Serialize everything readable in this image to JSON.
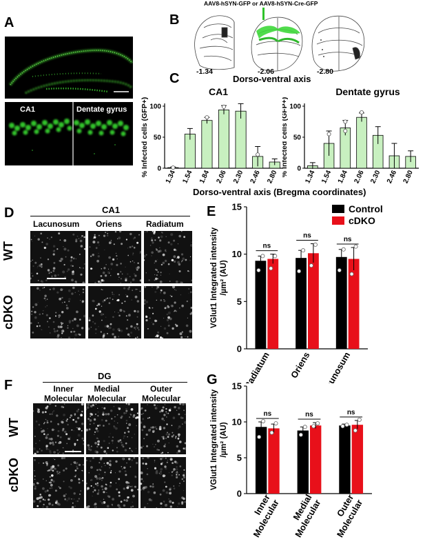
{
  "panels": {
    "a": {
      "label": "A",
      "sub_ca1": "CA1",
      "sub_dg": "Dentate gyrus"
    },
    "b": {
      "label": "B",
      "virus": "AAV8-hSYN-GFP or AAV8-hSYN-Cre-GFP",
      "coords": [
        "-1.34",
        "-2.06",
        "-2.80"
      ],
      "axis_title": "Dorso-ventral axis"
    },
    "c": {
      "label": "C",
      "shared_xlabel": "Dorso-ventral axis (Bregma coordinates)"
    },
    "d": {
      "label": "D",
      "region": "CA1",
      "columns": [
        "Lacunosum",
        "Oriens",
        "Radiatum"
      ],
      "rows": [
        "WT",
        "cDKO"
      ]
    },
    "e": {
      "label": "E"
    },
    "f": {
      "label": "F",
      "region": "DG",
      "columns": [
        "Inner\nMolecular",
        "Medial\nMolecular",
        "Outer\nMolecular"
      ],
      "rows": [
        "WT",
        "cDKO"
      ]
    },
    "g": {
      "label": "G"
    }
  },
  "chart_data": [
    {
      "id": "c-ca1",
      "type": "bar",
      "title": "CA1",
      "ylabel": "% Infected cells (GFP+)",
      "categories": [
        "1.34",
        "1.54",
        "1.84",
        "2.06",
        "2.30",
        "2.46",
        "2.80"
      ],
      "values": [
        1,
        55,
        77,
        94,
        92,
        19,
        10
      ],
      "errors": [
        1,
        9,
        5,
        7,
        12,
        16,
        5
      ],
      "points": [
        [
          1
        ],
        [],
        [
          82
        ],
        [
          99
        ],
        [],
        [
          22
        ],
        []
      ],
      "ylim": [
        0,
        100
      ],
      "yticks": [
        0,
        50,
        100
      ],
      "bar_color": "#c8f0c0"
    },
    {
      "id": "c-dg",
      "type": "bar",
      "title": "Dentate gyrus",
      "ylabel": "% Infected cells (GFP+)",
      "categories": [
        "1.34",
        "1.54",
        "1.84",
        "2.06",
        "2.30",
        "2.46",
        "2.80"
      ],
      "values": [
        4,
        40,
        65,
        82,
        53,
        20,
        19
      ],
      "errors": [
        5,
        20,
        12,
        7,
        14,
        20,
        9
      ],
      "points": [
        [],
        [
          55
        ],
        [
          75,
          60
        ],
        [
          90
        ],
        [],
        [],
        []
      ],
      "ylim": [
        0,
        100
      ],
      "yticks": [
        0,
        50,
        100
      ],
      "bar_color": "#c8f0c0"
    },
    {
      "id": "e",
      "type": "bar",
      "ylabel": "VGlut1 Integrated intensity\n/µm² (AU)",
      "categories": [
        "Radiatum",
        "Oriens",
        "Lacunosum"
      ],
      "series": [
        {
          "name": "Control",
          "color": "#000000",
          "values": [
            9.3,
            9.6,
            9.7
          ],
          "errors": [
            0.5,
            0.8,
            0.8
          ],
          "points": [
            [
              9.8,
              8.3
            ],
            [
              10.4,
              8.2
            ],
            [
              10.5,
              8.3
            ]
          ]
        },
        {
          "name": "cDKO",
          "color": "#e8101a",
          "values": [
            9.5,
            10.1,
            9.5
          ],
          "errors": [
            0.5,
            1.0,
            1.2
          ],
          "points": [
            [
              9.8,
              8.5
            ],
            [
              11.0,
              8.8
            ],
            [
              10.8,
              7.9
            ]
          ]
        }
      ],
      "significance": [
        "ns",
        "ns",
        "ns"
      ],
      "ylim": [
        0,
        15
      ],
      "yticks": [
        0,
        5,
        10,
        15
      ],
      "legend_position": "top-right"
    },
    {
      "id": "g",
      "type": "bar",
      "ylabel": "VGlut1 Integrated intensity\n/µm² (AU)",
      "categories": [
        "Inner\nMolecular",
        "Medial\nMolecular",
        "Outer\nMolecular"
      ],
      "series": [
        {
          "name": "Control",
          "color": "#000000",
          "values": [
            9.3,
            8.8,
            9.5
          ],
          "errors": [
            0.7,
            0.5,
            0.2
          ],
          "points": [
            [
              10.1,
              7.9
            ],
            [
              9.3,
              8.2
            ],
            [
              9.6,
              9.4
            ]
          ]
        },
        {
          "name": "cDKO",
          "color": "#e8101a",
          "values": [
            9.1,
            9.5,
            9.6
          ],
          "errors": [
            0.6,
            0.4,
            0.6
          ],
          "points": [
            [
              9.8,
              8.5
            ],
            [
              9.8,
              9.4
            ],
            [
              10.3,
              8.8
            ]
          ]
        }
      ],
      "significance": [
        "ns",
        "ns",
        "ns"
      ],
      "ylim": [
        0,
        15
      ],
      "yticks": [
        0,
        5,
        10,
        15
      ]
    }
  ]
}
